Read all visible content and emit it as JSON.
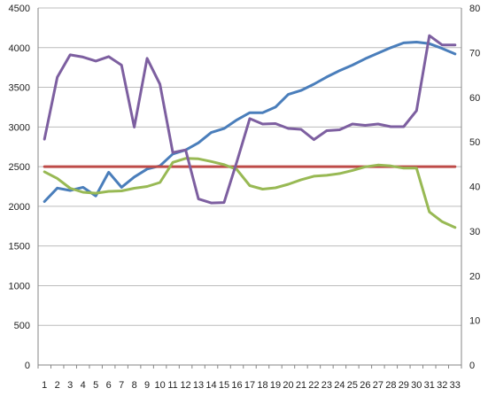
{
  "chart_data": {
    "type": "line",
    "title": "",
    "xlabel": "",
    "ylabel": "",
    "y2label": "",
    "grid": true,
    "legend": "none",
    "categories": [
      1,
      2,
      3,
      4,
      5,
      6,
      7,
      8,
      9,
      10,
      11,
      12,
      13,
      14,
      15,
      16,
      17,
      18,
      19,
      20,
      21,
      22,
      23,
      24,
      25,
      26,
      27,
      28,
      29,
      30,
      31,
      32,
      33
    ],
    "ylim": [
      0,
      4500
    ],
    "yticks": [
      0,
      500,
      1000,
      1500,
      2000,
      2500,
      3000,
      3500,
      4000,
      4500
    ],
    "y2lim": [
      0,
      80
    ],
    "y2ticks": [
      0,
      10,
      20,
      30,
      40,
      50,
      60,
      70,
      80
    ],
    "series": [
      {
        "axis": "left",
        "color": "#4a7ebb",
        "values": [
          2060,
          2230,
          2200,
          2240,
          2130,
          2430,
          2240,
          2370,
          2470,
          2510,
          2660,
          2710,
          2800,
          2930,
          2980,
          3090,
          3180,
          3180,
          3250,
          3410,
          3460,
          3540,
          3630,
          3710,
          3780,
          3860,
          3930,
          4000,
          4060,
          4070,
          4050,
          3990,
          3920
        ]
      },
      {
        "axis": "left",
        "color": "#be4b48",
        "values": [
          2500,
          2500,
          2500,
          2500,
          2500,
          2500,
          2500,
          2500,
          2500,
          2500,
          2500,
          2500,
          2500,
          2500,
          2500,
          2500,
          2500,
          2500,
          2500,
          2500,
          2500,
          2500,
          2500,
          2500,
          2500,
          2500,
          2500,
          2500,
          2500,
          2500,
          2500,
          2500,
          2500
        ]
      },
      {
        "axis": "right",
        "color": "#98b954",
        "values": [
          43.3,
          41.8,
          39.6,
          38.7,
          38.5,
          38.9,
          39.0,
          39.6,
          40.0,
          40.9,
          45.4,
          46.3,
          46.2,
          45.6,
          44.9,
          43.8,
          40.2,
          39.4,
          39.7,
          40.5,
          41.5,
          42.3,
          42.5,
          42.9,
          43.6,
          44.4,
          44.8,
          44.6,
          44.1,
          44.1,
          34.3,
          32.1,
          30.8
        ]
      },
      {
        "axis": "right",
        "color": "#7d5fa0",
        "values": [
          50.6,
          64.5,
          69.5,
          69.0,
          68.1,
          69.1,
          67.2,
          53.3,
          68.7,
          62.9,
          47.6,
          48.2,
          37.2,
          36.3,
          36.4,
          45.6,
          55.2,
          54.0,
          54.1,
          53.0,
          52.8,
          50.5,
          52.5,
          52.7,
          54.0,
          53.7,
          54.0,
          53.4,
          53.4,
          57.0,
          73.8,
          71.7,
          71.7
        ]
      }
    ]
  }
}
